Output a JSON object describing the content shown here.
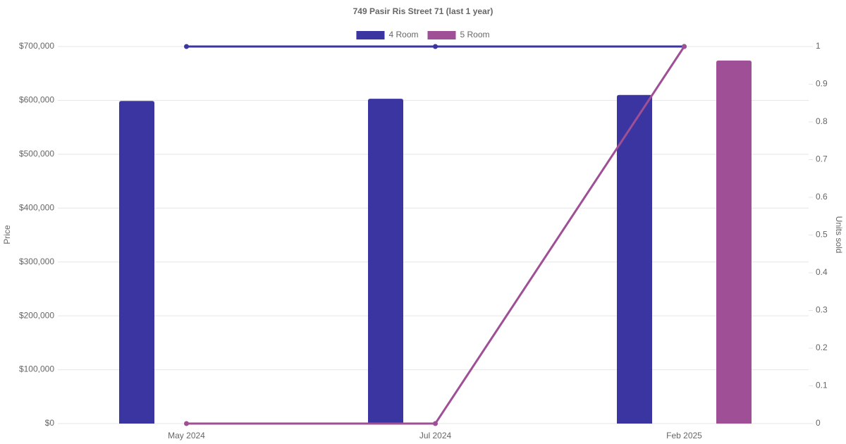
{
  "chart_data": {
    "type": "bar-line",
    "title": "749 Pasir Ris Street 71 (last 1 year)",
    "categories": [
      "May 2024",
      "Jul 2024",
      "Feb 2025"
    ],
    "series": [
      {
        "name": "4 Room",
        "color": "#3a35a0",
        "values": [
          599000,
          603000,
          610000
        ],
        "units_sold": [
          1,
          1,
          1
        ]
      },
      {
        "name": "5 Room",
        "color": "#9e4f96",
        "values": [
          null,
          null,
          674000
        ],
        "units_sold": [
          0,
          0,
          1
        ]
      }
    ],
    "y_label": "Price",
    "y2_label": "Units sold",
    "ylim": [
      0,
      700000
    ],
    "yticks": [
      {
        "value": 0,
        "label": "$0"
      },
      {
        "value": 100000,
        "label": "$100,000"
      },
      {
        "value": 200000,
        "label": "$200,000"
      },
      {
        "value": 300000,
        "label": "$300,000"
      },
      {
        "value": 400000,
        "label": "$400,000"
      },
      {
        "value": 500000,
        "label": "$500,000"
      },
      {
        "value": 600000,
        "label": "$600,000"
      },
      {
        "value": 700000,
        "label": "$700,000"
      }
    ],
    "y2lim": [
      0,
      1
    ],
    "y2ticks": [
      0,
      0.1,
      0.2,
      0.3,
      0.4,
      0.5,
      0.6,
      0.7,
      0.8,
      0.9,
      1
    ],
    "grid": true,
    "legend": "top"
  }
}
